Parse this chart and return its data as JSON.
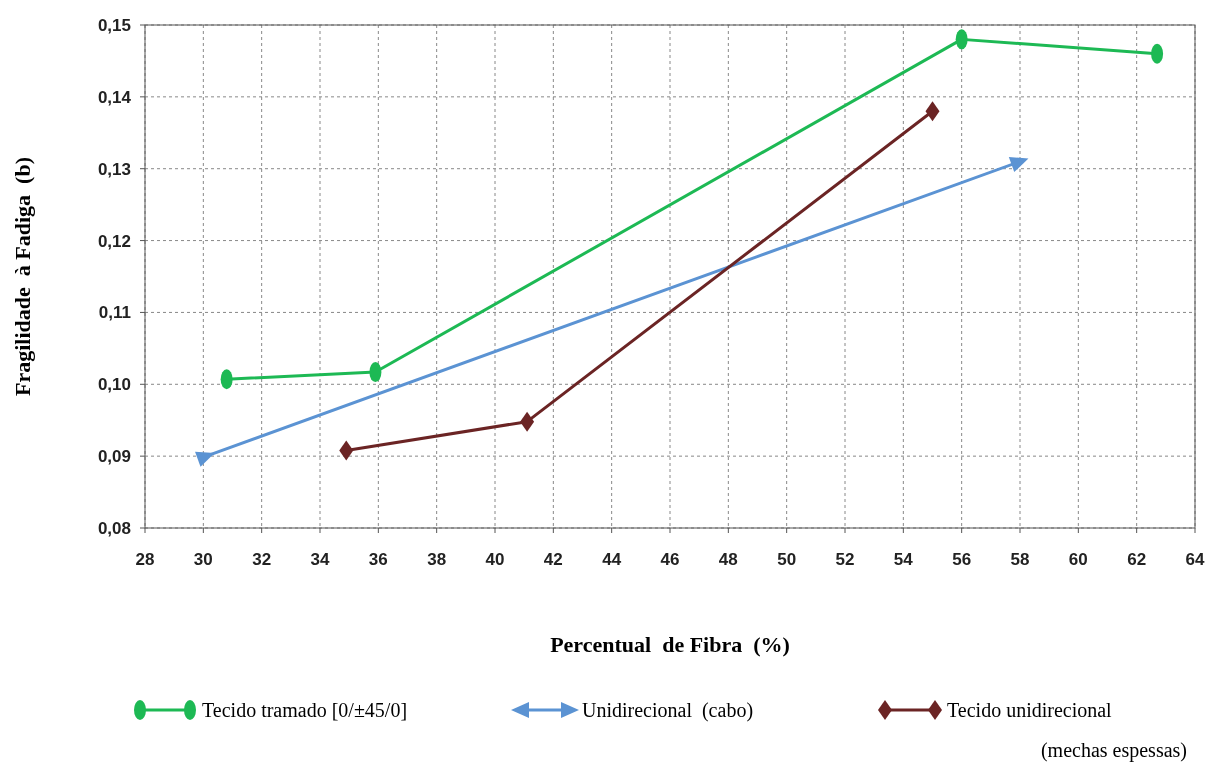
{
  "chart_data": {
    "type": "line",
    "xlabel": "Percentual  de Fibra  (%)",
    "ylabel": "Fragilidade  à Fadiga  (b)",
    "xlim": [
      28,
      64
    ],
    "xticks": [
      28,
      30,
      32,
      34,
      36,
      38,
      40,
      42,
      44,
      46,
      48,
      50,
      52,
      54,
      56,
      58,
      60,
      62,
      64
    ],
    "ylim": [
      0.08,
      0.15
    ],
    "yticks": [
      {
        "value": 0.08,
        "label": "0,08"
      },
      {
        "value": 0.09,
        "label": "0,09"
      },
      {
        "value": 0.1,
        "label": "0,10"
      },
      {
        "value": 0.11,
        "label": "0,11"
      },
      {
        "value": 0.12,
        "label": "0,12"
      },
      {
        "value": 0.13,
        "label": "0,13"
      },
      {
        "value": 0.14,
        "label": "0,14"
      },
      {
        "value": 0.15,
        "label": "0,15"
      }
    ],
    "grid": true,
    "legend": "bottom",
    "line_style": "solid",
    "series": [
      {
        "name": "Tecido tramado [0/±45/0]",
        "color": "#1db954",
        "marker": "circle",
        "x": [
          30.8,
          35.9,
          56,
          62.7
        ],
        "values": [
          0.1007,
          0.1017,
          0.148,
          0.146
        ]
      },
      {
        "name": "Unidirecional  (cabo)",
        "color": "#5b93d3",
        "marker": "triangle",
        "x": [
          30.1,
          58
        ],
        "values": [
          0.09,
          0.131
        ]
      },
      {
        "name": "Tecido unidirecional  (mechas espessas)",
        "color": "#6b2424",
        "marker": "diamond",
        "x": [
          34.9,
          41.1,
          55
        ],
        "values": [
          0.0908,
          0.0948,
          0.138
        ]
      }
    ]
  }
}
